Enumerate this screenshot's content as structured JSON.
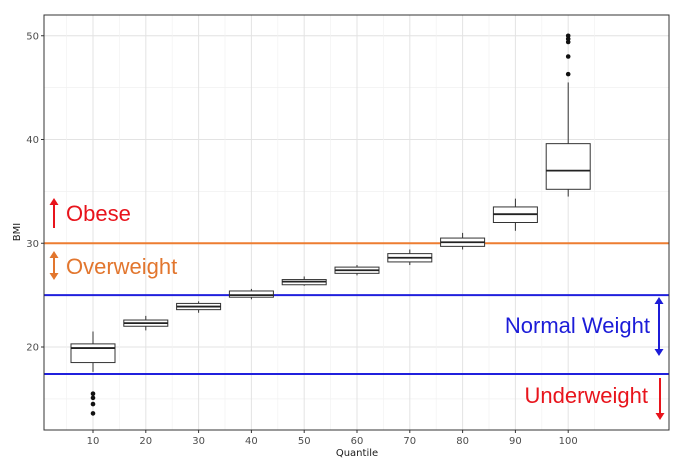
{
  "chart_data": {
    "type": "box",
    "xlabel": "Quantile",
    "ylabel": "BMI",
    "categories": [
      "10",
      "20",
      "30",
      "40",
      "50",
      "60",
      "70",
      "80",
      "90",
      "100"
    ],
    "ylim": [
      12,
      52
    ],
    "y_ticks": [
      20,
      30,
      40,
      50
    ],
    "grid": true,
    "boxes": [
      {
        "category": "10",
        "whisker_low": 17.6,
        "q1": 18.5,
        "median": 19.9,
        "q3": 20.3,
        "whisker_high": 21.5,
        "outliers": [
          15.5,
          15.1,
          14.5,
          13.6
        ]
      },
      {
        "category": "20",
        "whisker_low": 21.6,
        "q1": 22.0,
        "median": 22.3,
        "q3": 22.6,
        "whisker_high": 23.0,
        "outliers": []
      },
      {
        "category": "30",
        "whisker_low": 23.3,
        "q1": 23.6,
        "median": 23.9,
        "q3": 24.2,
        "whisker_high": 24.4,
        "outliers": []
      },
      {
        "category": "40",
        "whisker_low": 24.6,
        "q1": 24.8,
        "median": 25.0,
        "q3": 25.4,
        "whisker_high": 25.6,
        "outliers": []
      },
      {
        "category": "50",
        "whisker_low": 25.9,
        "q1": 26.0,
        "median": 26.3,
        "q3": 26.5,
        "whisker_high": 26.8,
        "outliers": []
      },
      {
        "category": "60",
        "whisker_low": 26.9,
        "q1": 27.1,
        "median": 27.4,
        "q3": 27.7,
        "whisker_high": 27.9,
        "outliers": []
      },
      {
        "category": "70",
        "whisker_low": 27.9,
        "q1": 28.2,
        "median": 28.6,
        "q3": 29.0,
        "whisker_high": 29.4,
        "outliers": []
      },
      {
        "category": "80",
        "whisker_low": 29.4,
        "q1": 29.7,
        "median": 30.1,
        "q3": 30.5,
        "whisker_high": 31.0,
        "outliers": []
      },
      {
        "category": "90",
        "whisker_low": 31.2,
        "q1": 32.0,
        "median": 32.8,
        "q3": 33.5,
        "whisker_high": 34.3,
        "outliers": []
      },
      {
        "category": "100",
        "whisker_low": 34.5,
        "q1": 35.2,
        "median": 37.0,
        "q3": 39.6,
        "whisker_high": 45.5,
        "outliers": [
          46.3,
          48.0,
          49.4,
          49.7,
          50.0
        ]
      }
    ],
    "reference_lines": [
      {
        "value": 30.0,
        "color": "#ed7d31"
      },
      {
        "value": 25.0,
        "color": "#2020dd"
      },
      {
        "value": 17.4,
        "color": "#2020dd"
      }
    ],
    "annotations": [
      {
        "text": "Obese",
        "arrow": "up",
        "color": "#e8141c"
      },
      {
        "text": "Overweight",
        "arrow": "both",
        "color": "#e2762e"
      },
      {
        "text": "Normal Weight",
        "arrow": "both",
        "color": "#1c1cd8"
      },
      {
        "text": "Underweight",
        "arrow": "down",
        "color": "#e8141c"
      }
    ]
  }
}
